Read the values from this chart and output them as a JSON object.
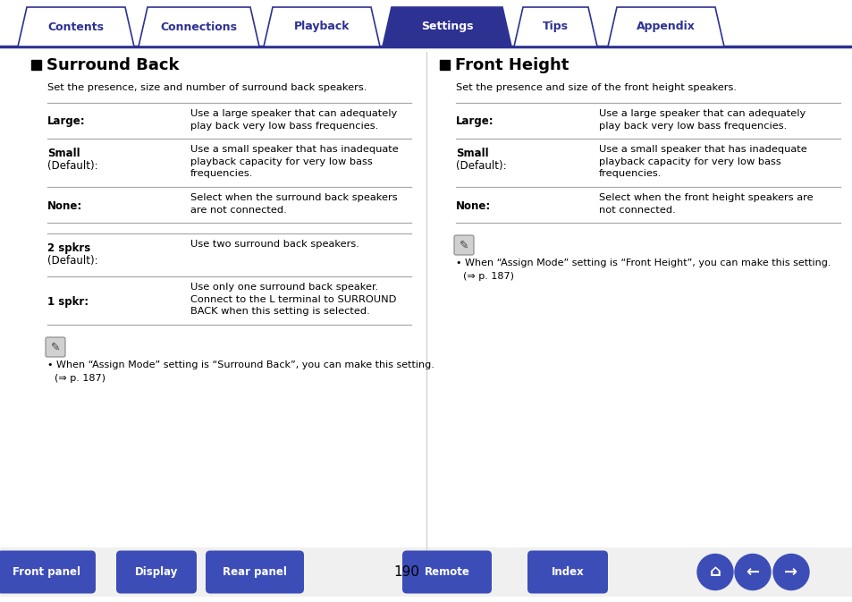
{
  "bg_color": "#ffffff",
  "tab_color_active": "#2d3192",
  "tab_color_inactive": "#ffffff",
  "tab_border_color": "#2d3192",
  "tab_text_active": "#ffffff",
  "tab_text_inactive": "#2d3192",
  "tabs": [
    "Contents",
    "Connections",
    "Playback",
    "Settings",
    "Tips",
    "Appendix"
  ],
  "active_tab": 3,
  "left_section_title": "Surround Back",
  "left_subtitle": "Set the presence, size and number of surround back speakers.",
  "left_rows": [
    {
      "label_bold": "Large:",
      "label_normal": "",
      "desc": "Use a large speaker that can adequately\nplay back very low bass frequencies."
    },
    {
      "label_bold": "Small",
      "label_normal": "(Default):",
      "desc": "Use a small speaker that has inadequate\nplayback capacity for very low bass\nfrequencies."
    },
    {
      "label_bold": "None:",
      "label_normal": "",
      "desc": "Select when the surround back speakers\nare not connected."
    }
  ],
  "left_rows2": [
    {
      "label_bold": "2 spkrs",
      "label_normal": "(Default):",
      "desc": "Use two surround back speakers."
    },
    {
      "label_bold": "1 spkr:",
      "label_normal": "",
      "desc": "Use only one surround back speaker.\nConnect to the L terminal to SURROUND\nBACK when this setting is selected."
    }
  ],
  "left_note1": "When “Assign Mode” setting is “Surround Back”, you can make this setting.",
  "left_note2": "(⇒ p. 187)",
  "right_section_title": "Front Height",
  "right_subtitle": "Set the presence and size of the front height speakers.",
  "right_rows": [
    {
      "label_bold": "Large:",
      "label_normal": "",
      "desc": "Use a large speaker that can adequately\nplay back very low bass frequencies."
    },
    {
      "label_bold": "Small",
      "label_normal": "(Default):",
      "desc": "Use a small speaker that has inadequate\nplayback capacity for very low bass\nfrequencies."
    },
    {
      "label_bold": "None:",
      "label_normal": "",
      "desc": "Select when the front height speakers are\nnot connected."
    }
  ],
  "right_note1": "When “Assign Mode” setting is “Front Height”, you can make this setting.",
  "right_note2": "(⇒ p. 187)",
  "bottom_buttons": [
    "Front panel",
    "Display",
    "Rear panel",
    "Remote",
    "Index"
  ],
  "page_number": "190",
  "button_color": "#3d4db7",
  "button_text_color": "#ffffff",
  "line_color": "#aaaaaa",
  "divider_color": "#cccccc",
  "header_line_color": "#2d3192"
}
